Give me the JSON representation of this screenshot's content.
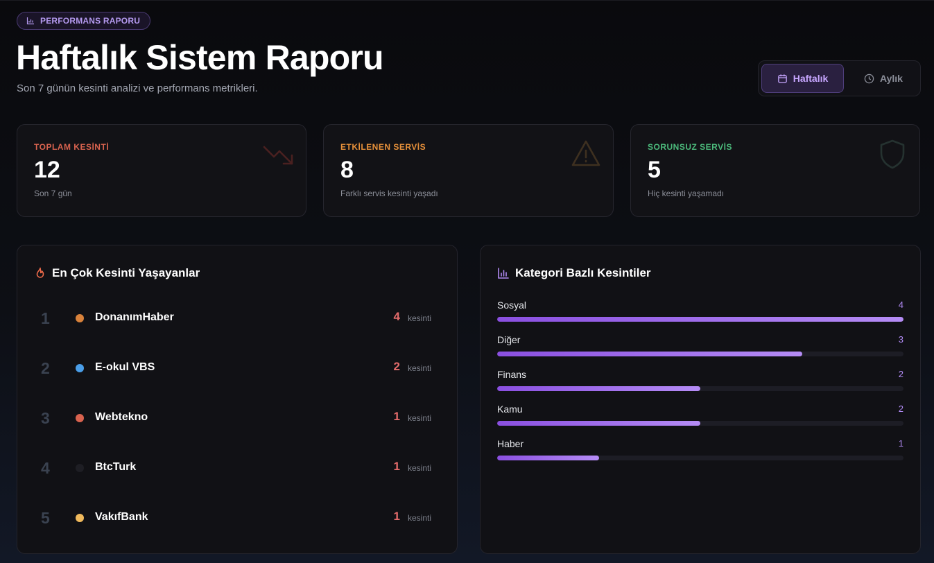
{
  "header": {
    "badge": "PERFORMANS RAPORU",
    "title": "Haftalık Sistem Raporu",
    "subtitle": "Son 7 günün kesinti analizi ve performans metrikleri."
  },
  "period_toggle": {
    "options": [
      {
        "label": "Haftalık",
        "icon": "calendar-icon",
        "selected": true
      },
      {
        "label": "Aylık",
        "icon": "clock-icon",
        "selected": false
      }
    ]
  },
  "stats": [
    {
      "label": "TOPLAM KESİNTİ",
      "value": "12",
      "note": "Son 7 gün",
      "color": "#d9634f",
      "icon": "trending-down-icon"
    },
    {
      "label": "ETKİLENEN SERVİS",
      "value": "8",
      "note": "Farklı servis kesinti yaşadı",
      "color": "#e8913a",
      "icon": "warning-icon"
    },
    {
      "label": "SORUNSUZ SERVİS",
      "value": "5",
      "note": "Hiç kesinti yaşamadı",
      "color": "#4cbb7c",
      "icon": "shield-icon"
    }
  ],
  "top_outages": {
    "title": "En Çok Kesinti Yaşayanlar",
    "icon": "flame-icon",
    "unit": "kesinti",
    "items": [
      {
        "rank": "1",
        "name": "DonanımHaber",
        "count": "4",
        "color": "#d9823b"
      },
      {
        "rank": "2",
        "name": "E-okul VBS",
        "count": "2",
        "color": "#4a9ee8"
      },
      {
        "rank": "3",
        "name": "Webtekno",
        "count": "1",
        "color": "#d9634f"
      },
      {
        "rank": "4",
        "name": "BtcTurk",
        "count": "1",
        "color": "#1e1e24"
      },
      {
        "rank": "5",
        "name": "VakıfBank",
        "count": "1",
        "color": "#f0b95c"
      }
    ]
  },
  "categories": {
    "title": "Kategori Bazlı Kesintiler",
    "icon": "bar-chart-icon",
    "max": 4,
    "items": [
      {
        "label": "Sosyal",
        "value": 4
      },
      {
        "label": "Diğer",
        "value": 3
      },
      {
        "label": "Finans",
        "value": 2
      },
      {
        "label": "Kamu",
        "value": 2
      },
      {
        "label": "Haber",
        "value": 1
      }
    ]
  }
}
